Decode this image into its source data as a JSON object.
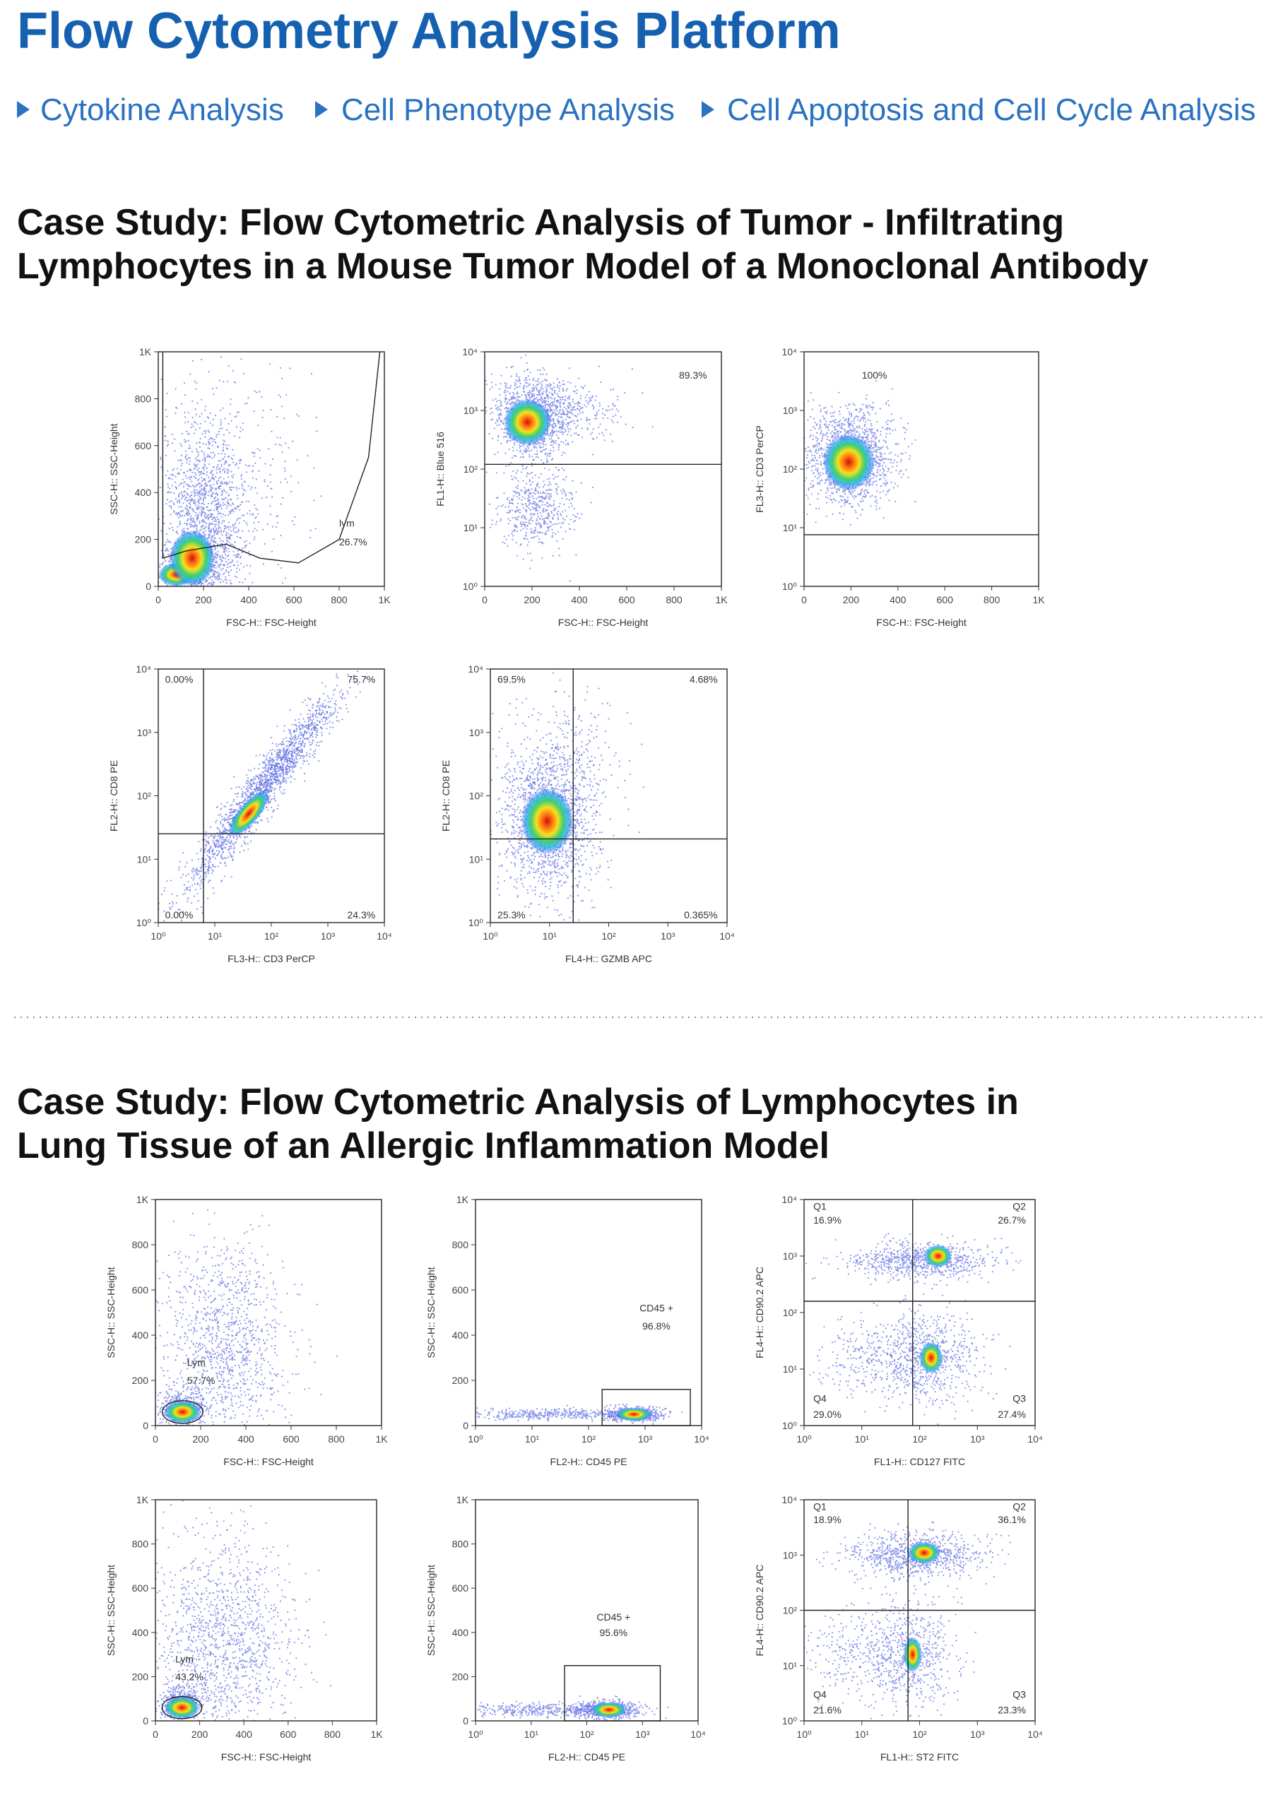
{
  "header": {
    "title": "Flow Cytometry Analysis Platform"
  },
  "nav": {
    "links": [
      "Cytokine Analysis",
      "Cell Phenotype Analysis",
      "Cell Apoptosis and Cell Cycle Analysis"
    ]
  },
  "sections": [
    {
      "heading_lines": [
        "Case Study: Flow Cytometric Analysis of Tumor - Infiltrating",
        "Lymphocytes in a Mouse Tumor Model of a Monoclonal Antibody"
      ],
      "plots": [
        {
          "x_label": "FSC-H:: FSC-Height",
          "y_label": "SSC-H:: SSC-Height",
          "x_ticks": [
            "0",
            "200",
            "400",
            "600",
            "800",
            "1K"
          ],
          "y_ticks": [
            "0",
            "200",
            "400",
            "600",
            "800",
            "1K"
          ],
          "gate_labels": [
            "lym",
            "26.7%"
          ]
        },
        {
          "x_label": "FSC-H:: FSC-Height",
          "y_label": "FL1-H:: Blue 516",
          "x_ticks": [
            "0",
            "200",
            "400",
            "600",
            "800",
            "1K"
          ],
          "y_ticks": [
            "10⁰",
            "10¹",
            "10²",
            "10³",
            "10⁴"
          ],
          "gate_labels": [
            "89.3%"
          ]
        },
        {
          "x_label": "FSC-H:: FSC-Height",
          "y_label": "FL3-H:: CD3 PerCP",
          "x_ticks": [
            "0",
            "200",
            "400",
            "600",
            "800",
            "1K"
          ],
          "y_ticks": [
            "10⁰",
            "10¹",
            "10²",
            "10³",
            "10⁴"
          ],
          "gate_labels": [
            "100%"
          ]
        },
        {
          "x_label": "FL3-H:: CD3 PerCP",
          "y_label": "FL2-H:: CD8 PE",
          "x_ticks": [
            "10⁰",
            "10¹",
            "10²",
            "10³",
            "10⁴"
          ],
          "y_ticks": [
            "10⁰",
            "10¹",
            "10²",
            "10³",
            "10⁴"
          ],
          "gate_labels": [
            "0.00%",
            "75.7%",
            "0.00%",
            "24.3%"
          ]
        },
        {
          "x_label": "FL4-H:: GZMB APC",
          "y_label": "FL2-H:: CD8 PE",
          "x_ticks": [
            "10⁰",
            "10¹",
            "10²",
            "10³",
            "10⁴"
          ],
          "y_ticks": [
            "10⁰",
            "10¹",
            "10²",
            "10³",
            "10⁴"
          ],
          "gate_labels": [
            "69.5%",
            "4.68%",
            "25.3%",
            "0.365%"
          ]
        }
      ]
    },
    {
      "heading_lines": [
        "Case Study: Flow Cytometric Analysis of Lymphocytes in",
        "Lung Tissue of an Allergic Inflammation Model"
      ],
      "plots": [
        {
          "x_label": "FSC-H:: FSC-Height",
          "y_label": "SSC-H:: SSC-Height",
          "x_ticks": [
            "0",
            "200",
            "400",
            "600",
            "800",
            "1K"
          ],
          "y_ticks": [
            "0",
            "200",
            "400",
            "600",
            "800",
            "1K"
          ],
          "gate_labels": [
            "Lym",
            "57.7%"
          ]
        },
        {
          "x_label": "FL2-H:: CD45 PE",
          "y_label": "SSC-H:: SSC-Height",
          "x_ticks": [
            "10⁰",
            "10¹",
            "10²",
            "10³",
            "10⁴"
          ],
          "y_ticks": [
            "0",
            "200",
            "400",
            "600",
            "800",
            "1K"
          ],
          "gate_labels": [
            "CD45 +",
            "96.8%"
          ]
        },
        {
          "x_label": "FL1-H:: CD127 FITC",
          "y_label": "FL4-H:: CD90.2 APC",
          "x_ticks": [
            "10⁰",
            "10¹",
            "10²",
            "10³",
            "10⁴"
          ],
          "y_ticks": [
            "10⁰",
            "10¹",
            "10²",
            "10³",
            "10⁴"
          ],
          "gate_labels": [
            "Q1",
            "16.9%",
            "Q2",
            "26.7%",
            "Q4",
            "29.0%",
            "Q3",
            "27.4%"
          ]
        },
        {
          "x_label": "FSC-H:: FSC-Height",
          "y_label": "SSC-H:: SSC-Height",
          "x_ticks": [
            "0",
            "200",
            "400",
            "600",
            "800",
            "1K"
          ],
          "y_ticks": [
            "0",
            "200",
            "400",
            "600",
            "800",
            "1K"
          ],
          "gate_labels": [
            "Lym",
            "43.2%"
          ]
        },
        {
          "x_label": "FL2-H:: CD45 PE",
          "y_label": "SSC-H:: SSC-Height",
          "x_ticks": [
            "10⁰",
            "10¹",
            "10²",
            "10³",
            "10⁴"
          ],
          "y_ticks": [
            "0",
            "200",
            "400",
            "600",
            "800",
            "1K"
          ],
          "gate_labels": [
            "CD45 +",
            "95.6%"
          ]
        },
        {
          "x_label": "FL1-H:: ST2 FITC",
          "y_label": "FL4-H:: CD90.2 APC",
          "x_ticks": [
            "10⁰",
            "10¹",
            "10²",
            "10³",
            "10⁴"
          ],
          "y_ticks": [
            "10⁰",
            "10¹",
            "10²",
            "10³",
            "10⁴"
          ],
          "gate_labels": [
            "Q1",
            "18.9%",
            "Q2",
            "36.1%",
            "Q4",
            "21.6%",
            "Q3",
            "23.3%"
          ]
        }
      ]
    }
  ]
}
